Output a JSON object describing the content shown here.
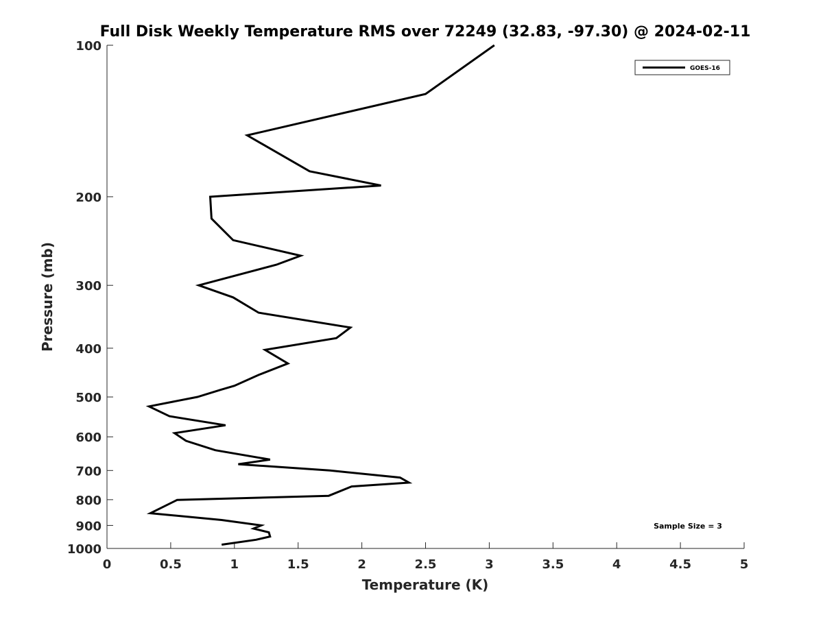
{
  "chart_data": {
    "type": "line",
    "title": "Full Disk Weekly Temperature RMS over 72249 (32.83, -97.30) @ 2024-02-11",
    "xlabel": "Temperature (K)",
    "ylabel": "Pressure (mb)",
    "xlim": [
      0,
      5
    ],
    "ylim": [
      100,
      1000
    ],
    "y_scale": "log",
    "y_reversed": true,
    "x_ticks": [
      "0",
      "0.5",
      "1",
      "1.5",
      "2",
      "2.5",
      "3",
      "3.5",
      "4",
      "4.5",
      "5"
    ],
    "y_ticks": [
      "100",
      "200",
      "300",
      "400",
      "500",
      "600",
      "700",
      "800",
      "900",
      "1000"
    ],
    "grid": false,
    "legend_position": "top-right",
    "annotation": "Sample Size = 3",
    "series": [
      {
        "name": "GOES-16",
        "color": "#000000",
        "points": [
          [
            3.04,
            100
          ],
          [
            2.5,
            125
          ],
          [
            1.1,
            151
          ],
          [
            1.59,
            178
          ],
          [
            2.15,
            190
          ],
          [
            0.81,
            200
          ],
          [
            0.82,
            221
          ],
          [
            0.99,
            244
          ],
          [
            1.52,
            262
          ],
          [
            1.33,
            273
          ],
          [
            0.72,
            300
          ],
          [
            0.99,
            317
          ],
          [
            1.19,
            340
          ],
          [
            1.91,
            364
          ],
          [
            1.8,
            382
          ],
          [
            1.24,
            403
          ],
          [
            1.42,
            429
          ],
          [
            1.19,
            452
          ],
          [
            1.0,
            475
          ],
          [
            0.89,
            484
          ],
          [
            0.71,
            500
          ],
          [
            0.33,
            522
          ],
          [
            0.49,
            546
          ],
          [
            0.93,
            569
          ],
          [
            0.53,
            590
          ],
          [
            0.62,
            611
          ],
          [
            0.85,
            638
          ],
          [
            1.28,
            666
          ],
          [
            1.03,
            680
          ],
          [
            1.75,
            700
          ],
          [
            2.3,
            723
          ],
          [
            2.37,
            740
          ],
          [
            1.92,
            753
          ],
          [
            1.74,
            786
          ],
          [
            0.55,
            801
          ],
          [
            0.34,
            851
          ],
          [
            0.9,
            878
          ],
          [
            1.21,
            900
          ],
          [
            1.15,
            913
          ],
          [
            1.27,
            929
          ],
          [
            1.28,
            947
          ],
          [
            1.17,
            961
          ],
          [
            0.9,
            983
          ]
        ]
      }
    ]
  }
}
